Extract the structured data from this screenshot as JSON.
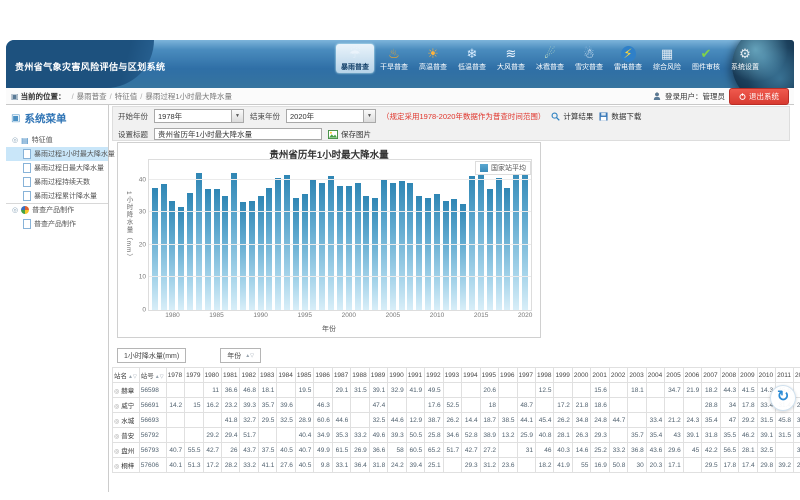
{
  "app": {
    "title": "贵州省气象灾害风险评估与区划系统",
    "login_label": "登录用户：管理员",
    "logout_label": "退出系统"
  },
  "nav": {
    "items": [
      {
        "name": "rainstorm",
        "label": "暴雨普查",
        "icon": "rain-cloud-icon",
        "glyph": "☔",
        "color": "#eaf3fb",
        "selected": true
      },
      {
        "name": "drought",
        "label": "干旱普查",
        "icon": "drought-heat-icon",
        "glyph": "♨",
        "color": "#f5a623",
        "selected": false
      },
      {
        "name": "heat",
        "label": "高温普查",
        "icon": "sun-thermometer-icon",
        "glyph": "☀",
        "color": "#ffb33c",
        "selected": false
      },
      {
        "name": "cold",
        "label": "低温普查",
        "icon": "snowflake-thermometer-icon",
        "glyph": "❄",
        "color": "#d7ecff",
        "selected": false
      },
      {
        "name": "wind",
        "label": "大风普查",
        "icon": "wind-icon",
        "glyph": "≋",
        "color": "#eef6ff",
        "selected": false
      },
      {
        "name": "hail",
        "label": "冰雹普查",
        "icon": "hail-icon",
        "glyph": "☄",
        "color": "#d9efc6",
        "selected": false
      },
      {
        "name": "snow",
        "label": "雪灾普查",
        "icon": "snow-cloud-icon",
        "glyph": "☃",
        "color": "#f0f7ff",
        "selected": false
      },
      {
        "name": "lightning",
        "label": "雷电普查",
        "icon": "lightning-icon",
        "glyph": "⚡",
        "color": "#ffd83d",
        "bg": "#2f80c8",
        "selected": false
      },
      {
        "name": "risk",
        "label": "综合风险",
        "icon": "risk-grid-icon",
        "glyph": "▦",
        "color": "#dfe9f2",
        "selected": false
      },
      {
        "name": "mapaudit",
        "label": "图件审核",
        "icon": "map-audit-icon",
        "glyph": "✔",
        "color": "#7fd24a",
        "selected": false
      },
      {
        "name": "settings",
        "label": "系统设置",
        "icon": "gear-icon",
        "glyph": "⚙",
        "color": "#e6edf3",
        "selected": false
      }
    ]
  },
  "breadcrumb": {
    "prefix": "当前的位置：",
    "items": [
      "暴雨普查",
      "特征值",
      "暴雨过程1小时最大降水量"
    ]
  },
  "sidebar": {
    "title": "系统菜单",
    "groups": [
      {
        "label": "特征值",
        "icon": "list-icon",
        "children": [
          {
            "label": "暴雨过程1小时最大降水量",
            "selected": true
          },
          {
            "label": "暴雨过程日最大降水量",
            "selected": false
          },
          {
            "label": "暴雨过程持续天数",
            "selected": false
          },
          {
            "label": "暴雨过程累计降水量",
            "selected": false
          }
        ]
      },
      {
        "label": "普查产品制作",
        "icon": "product-wheel-icon",
        "children": [
          {
            "label": "普查产品制作",
            "selected": false
          }
        ]
      }
    ]
  },
  "toolbar": {
    "start_year_label": "开始年份",
    "start_year_value": "1978年",
    "end_year_label": "结束年份",
    "end_year_value": "2020年",
    "hint": "（规定采用1978-2020年数据作为普查时间范围）",
    "calc_button": "计算结果",
    "download_button": "数据下载",
    "title_label": "设置标题",
    "title_value": "贵州省历年1小时最大降水量",
    "save_image_button": "保存图片"
  },
  "chart_data": {
    "type": "bar",
    "title": "贵州省历年1小时最大降水量",
    "legend": [
      "国家站平均"
    ],
    "legend_position": "top-right",
    "xlabel": "年份",
    "ylabel": "1小时降水量（mm）",
    "grid": true,
    "ylim": [
      0,
      46
    ],
    "yticks": [
      0,
      10,
      20,
      30,
      40
    ],
    "xticks": [
      1980,
      1985,
      1990,
      1995,
      2000,
      2005,
      2010,
      2015,
      2020
    ],
    "x": [
      1978,
      1979,
      1980,
      1981,
      1982,
      1983,
      1984,
      1985,
      1986,
      1987,
      1988,
      1989,
      1990,
      1991,
      1992,
      1993,
      1994,
      1995,
      1996,
      1997,
      1998,
      1999,
      2000,
      2001,
      2002,
      2003,
      2004,
      2005,
      2006,
      2007,
      2008,
      2009,
      2010,
      2011,
      2012,
      2013,
      2014,
      2015,
      2016,
      2017,
      2018,
      2019,
      2020
    ],
    "series": [
      {
        "name": "国家站平均",
        "values": [
          37.5,
          38.5,
          33.5,
          31.5,
          36,
          42,
          37,
          37,
          35,
          42,
          33,
          33.5,
          35,
          37.5,
          40.5,
          41.5,
          34.5,
          35.5,
          40,
          39,
          41,
          38,
          38,
          39,
          35,
          34.5,
          40,
          39,
          39.5,
          39,
          35,
          34.5,
          35.5,
          33.5,
          34,
          32.5,
          41,
          43,
          37,
          40.5,
          37.5,
          45,
          44
        ]
      }
    ],
    "bar_color_top": "#2f86b4",
    "bar_color_bottom": "#d8eef8"
  },
  "table": {
    "unit_label": "1小时降水量(mm)",
    "year_filter_label": "年份",
    "col_station": "站名",
    "col_station_id": "站号",
    "years": [
      1978,
      1979,
      1980,
      1981,
      1982,
      1983,
      1984,
      1985,
      1986,
      1987,
      1988,
      1989,
      1990,
      1991,
      1992,
      1993,
      1994,
      1995,
      1996,
      1997,
      1998,
      1999,
      2000,
      2001,
      2002,
      2003,
      2004,
      2005,
      2006,
      2007,
      2008,
      2009,
      2010,
      2011,
      2012,
      2013,
      2014
    ],
    "rows": [
      {
        "name": "赫章",
        "id": "56598",
        "values": [
          "",
          "",
          "11",
          "36.6",
          "46.8",
          "18.1",
          "",
          "19.5",
          "",
          "29.1",
          "31.5",
          "39.1",
          "32.9",
          "41.9",
          "49.5",
          "",
          "",
          "20.6",
          "",
          "",
          "12.5",
          "",
          "",
          "15.6",
          "",
          "18.1",
          "",
          "34.7",
          "21.9",
          "18.2",
          "44.3",
          "41.5",
          "14.3",
          "45.6",
          "7.8",
          "15.3",
          ""
        ]
      },
      {
        "name": "威宁",
        "id": "56691",
        "values": [
          "14.2",
          "15",
          "16.2",
          "23.2",
          "39.3",
          "35.7",
          "39.6",
          "",
          "46.3",
          "",
          "",
          "47.4",
          "",
          "",
          "17.6",
          "52.5",
          "",
          "18",
          "",
          "48.7",
          "",
          "17.2",
          "21.8",
          "18.6",
          "",
          "",
          "",
          "",
          "",
          "28.8",
          "34",
          "17.8",
          "33.4",
          "31.4",
          "29.5",
          "35.1",
          ""
        ]
      },
      {
        "name": "水城",
        "id": "56693",
        "values": [
          "",
          "",
          "",
          "41.8",
          "32.7",
          "29.5",
          "32.5",
          "28.9",
          "60.6",
          "44.6",
          "",
          "32.5",
          "44.6",
          "12.9",
          "38.7",
          "26.2",
          "14.4",
          "18.7",
          "38.5",
          "44.1",
          "45.4",
          "26.2",
          "34.8",
          "24.8",
          "44.7",
          "",
          "33.4",
          "21.2",
          "24.3",
          "35.4",
          "47",
          "29.2",
          "31.5",
          "45.8",
          "34.3",
          "",
          "31.9"
        ]
      },
      {
        "name": "普安",
        "id": "56792",
        "values": [
          "",
          "",
          "29.2",
          "29.4",
          "51.7",
          "",
          "",
          "40.4",
          "34.9",
          "35.3",
          "33.2",
          "49.6",
          "39.3",
          "50.5",
          "25.8",
          "34.6",
          "52.8",
          "38.9",
          "13.2",
          "25.9",
          "40.8",
          "28.1",
          "26.3",
          "29.3",
          "",
          "35.7",
          "35.4",
          "43",
          "39.1",
          "31.8",
          "35.5",
          "46.2",
          "39.1",
          "31.5",
          "38.6",
          "46.8",
          "31.1"
        ]
      },
      {
        "name": "盘州",
        "id": "56793",
        "values": [
          "40.7",
          "55.5",
          "42.7",
          "26",
          "43.7",
          "37.5",
          "40.5",
          "40.7",
          "49.9",
          "61.5",
          "26.9",
          "36.6",
          "58",
          "60.5",
          "65.2",
          "51.7",
          "42.7",
          "27.2",
          "",
          "31",
          "46",
          "40.3",
          "14.6",
          "25.2",
          "33.2",
          "36.8",
          "43.6",
          "29.6",
          "45",
          "42.2",
          "56.5",
          "28.1",
          "32.5",
          "",
          "30.2",
          "18.5",
          "35.8"
        ]
      },
      {
        "name": "桐梓",
        "id": "57606",
        "values": [
          "40.1",
          "51.3",
          "17.2",
          "28.2",
          "33.2",
          "41.1",
          "27.6",
          "40.5",
          "9.8",
          "33.1",
          "36.4",
          "31.8",
          "24.2",
          "39.4",
          "25.1",
          "",
          "29.3",
          "31.2",
          "23.6",
          "",
          "18.2",
          "41.9",
          "55",
          "16.9",
          "50.8",
          "30",
          "20.3",
          "17.1",
          "",
          "29.5",
          "17.8",
          "17.4",
          "29.8",
          "39.2",
          "29.3",
          "14.1",
          "42.1"
        ]
      }
    ]
  },
  "icons": {
    "sort_asc": "▲",
    "sort_desc": "▽",
    "combo_arrow": "▼",
    "location": "▣",
    "menu_box": "▣",
    "tree_toggle": "◎",
    "list_group": "▤",
    "radio": "◎",
    "spinner": "↻"
  },
  "colors": {
    "header_blue": "#2f6fa6",
    "title_tab_blue": "#1d517e",
    "accent_blue": "#2f74b5",
    "selected_item_bg": "#c9e6f9",
    "logout_red": "#d83a30",
    "hint_red": "#e0342b",
    "legend_swatch": "#4f9dc6"
  }
}
